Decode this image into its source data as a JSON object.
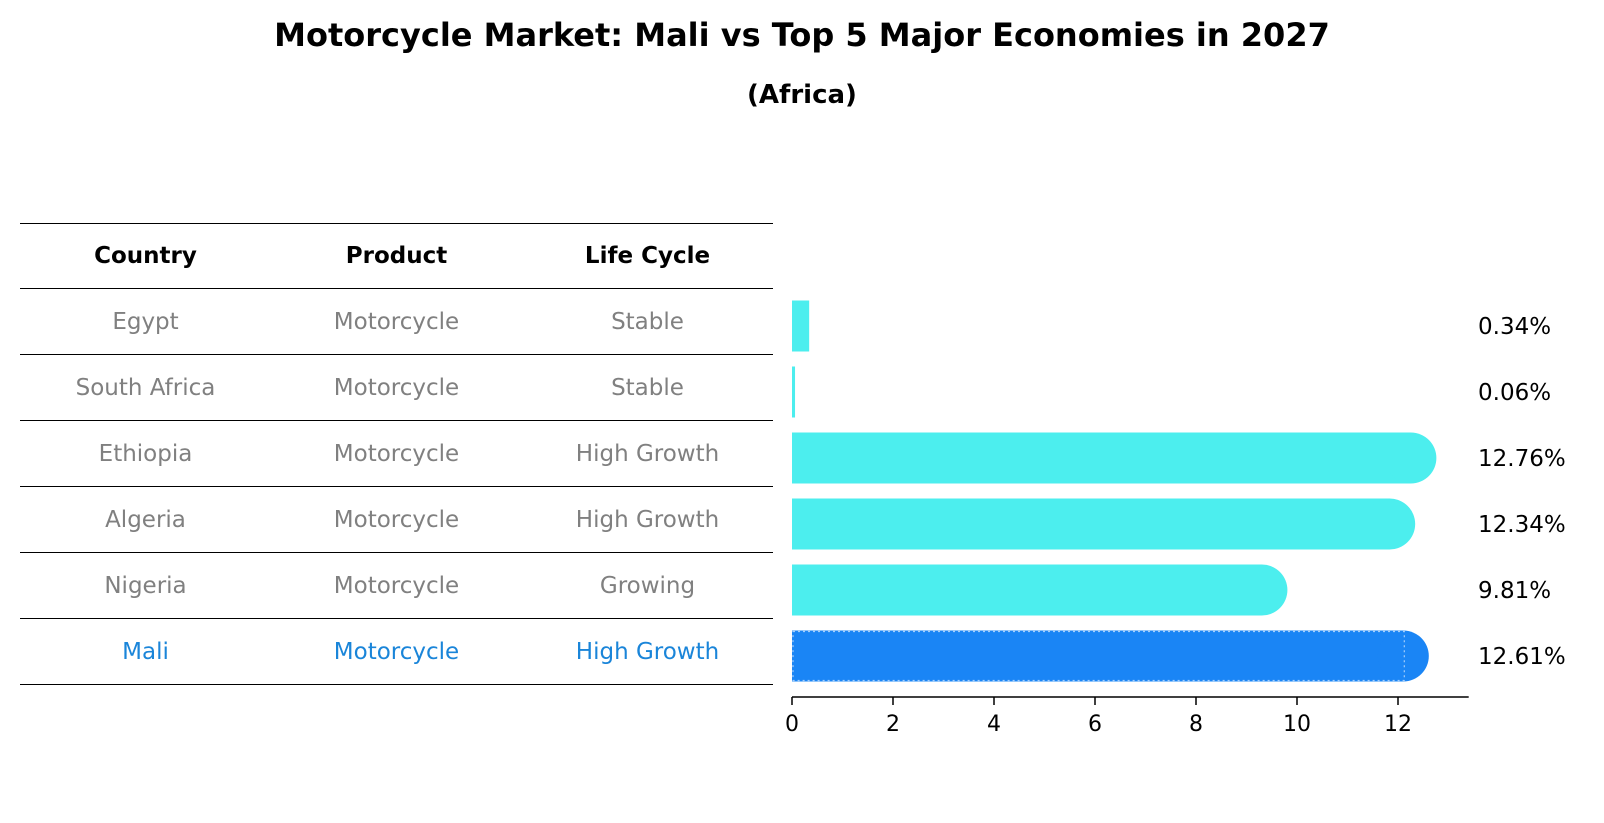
{
  "title": "Motorcycle Market: Mali vs Top 5 Major Economies in 2027",
  "subtitle": "(Africa)",
  "table": {
    "headers": [
      "Country",
      "Product",
      "Life Cycle"
    ],
    "rows": [
      {
        "country": "Egypt",
        "product": "Motorcycle",
        "life_cycle": "Stable"
      },
      {
        "country": "South Africa",
        "product": "Motorcycle",
        "life_cycle": "Stable"
      },
      {
        "country": "Ethiopia",
        "product": "Motorcycle",
        "life_cycle": "High Growth"
      },
      {
        "country": "Algeria",
        "product": "Motorcycle",
        "life_cycle": "High Growth"
      },
      {
        "country": "Nigeria",
        "product": "Motorcycle",
        "life_cycle": "Growing"
      },
      {
        "country": "Mali",
        "product": "Motorcycle",
        "life_cycle": "High Growth"
      }
    ]
  },
  "chart_data": {
    "type": "bar",
    "orientation": "horizontal",
    "title": "Motorcycle Market: Mali vs Top 5 Major Economies in 2027",
    "subtitle": "(Africa)",
    "categories": [
      "Egypt",
      "South Africa",
      "Ethiopia",
      "Algeria",
      "Nigeria",
      "Mali"
    ],
    "values": [
      0.34,
      0.06,
      12.76,
      12.34,
      9.81,
      12.61
    ],
    "value_labels": [
      "0.34%",
      "0.06%",
      "12.76%",
      "12.34%",
      "9.81%",
      "12.61%"
    ],
    "highlight": "Mali",
    "xlim": [
      0,
      13.4
    ],
    "xticks": [
      0,
      2,
      4,
      6,
      8,
      10,
      12
    ],
    "xlabel": "",
    "ylabel": "",
    "grid": false,
    "colors": {
      "default": "#4ceeee",
      "highlight": "#1a85f5"
    }
  }
}
